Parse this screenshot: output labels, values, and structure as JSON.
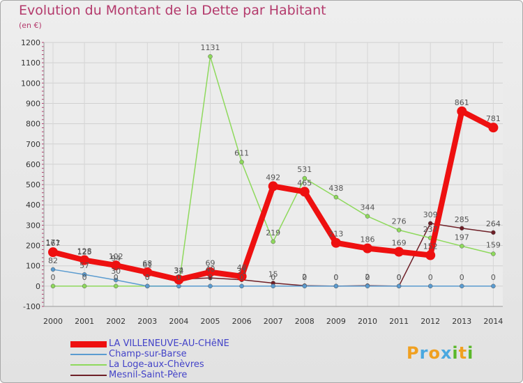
{
  "chart_data": {
    "type": "line",
    "title": "Evolution du Montant de la Dette par Habitant",
    "unit_label": "(en €)",
    "x": [
      2000,
      2001,
      2002,
      2003,
      2004,
      2005,
      2006,
      2007,
      2008,
      2009,
      2010,
      2011,
      2012,
      2013,
      2014
    ],
    "x_tick_labels": [
      "2000",
      "2001",
      "2002",
      "2003",
      "2004",
      "2005",
      "2006",
      "2007",
      "2008",
      "2009",
      "2010",
      "2011",
      "2012",
      "2013",
      "2014"
    ],
    "ylim": [
      -100,
      1200
    ],
    "y_ticks": [
      -100,
      0,
      100,
      200,
      300,
      400,
      500,
      600,
      700,
      800,
      900,
      1000,
      1100,
      1200
    ],
    "y_tick_labels": [
      "-100",
      "0",
      "100",
      "200",
      "300",
      "400",
      "500",
      "600",
      "700",
      "800",
      "900",
      "1000",
      "1100",
      "1200"
    ],
    "grid": true,
    "legend_position": "bottom-left",
    "series": [
      {
        "name": "Mesnil-Saint-Père",
        "color": "#6e1f27",
        "values": [
          171,
          125,
          94,
          61,
          34,
          40,
          31,
          15,
          2,
          0,
          2,
          0,
          309,
          285,
          264
        ],
        "labels": [
          "171",
          "125",
          "94",
          "61",
          "34",
          "40",
          "31",
          "15",
          "2",
          "0",
          "2",
          "0",
          "309",
          "285",
          "264"
        ]
      },
      {
        "name": "La Loge-aux-Chèvres",
        "color": "#8ed95c",
        "values": [
          0,
          0,
          0,
          0,
          0,
          1131,
          611,
          219,
          531,
          438,
          344,
          276,
          237,
          197,
          159
        ],
        "labels": [
          "0",
          "0",
          "0",
          "0",
          "0",
          "1131",
          "611",
          "219",
          "531",
          "438",
          "344",
          "276",
          "237",
          "197",
          "159"
        ]
      },
      {
        "name": "Champ-sur-Barse",
        "color": "#5a9bd0",
        "values": [
          82,
          57,
          30,
          0,
          0,
          0,
          0,
          0,
          0,
          0,
          0,
          0,
          0,
          0,
          0
        ],
        "labels": [
          "82",
          "57",
          "30",
          "0",
          "0",
          "0",
          "0",
          "0",
          "0",
          "0",
          "0",
          "0",
          "0",
          "0",
          "0"
        ]
      },
      {
        "name": "LA VILLENEUVE-AU-CHêNE",
        "color": "#ee1010",
        "values": [
          167,
          128,
          102,
          68,
          32,
          69,
          48,
          492,
          465,
          213,
          186,
          169,
          152,
          861,
          781
        ],
        "labels": [
          "167",
          "128",
          "102",
          "68",
          "32",
          "69",
          "48",
          "492",
          "465",
          "213",
          "186",
          "169",
          "152",
          "861",
          "781"
        ]
      }
    ]
  },
  "legend": {
    "items": [
      {
        "label": "LA VILLENEUVE-AU-CHêNE",
        "color": "#ee1010"
      },
      {
        "label": "Champ-sur-Barse",
        "color": "#5a9bd0"
      },
      {
        "label": "La Loge-aux-Chèvres",
        "color": "#8ed95c"
      },
      {
        "label": "Mesnil-Saint-Père",
        "color": "#6e1f27"
      }
    ]
  },
  "logo": {
    "letters": [
      "P",
      "r",
      "o",
      "x",
      "i",
      "t",
      "i"
    ],
    "colors": [
      "#f0a020",
      "#4aa8e0",
      "#f0a020",
      "#4aa8e0",
      "#5ab82a",
      "#f0a020",
      "#5ab82a"
    ]
  }
}
